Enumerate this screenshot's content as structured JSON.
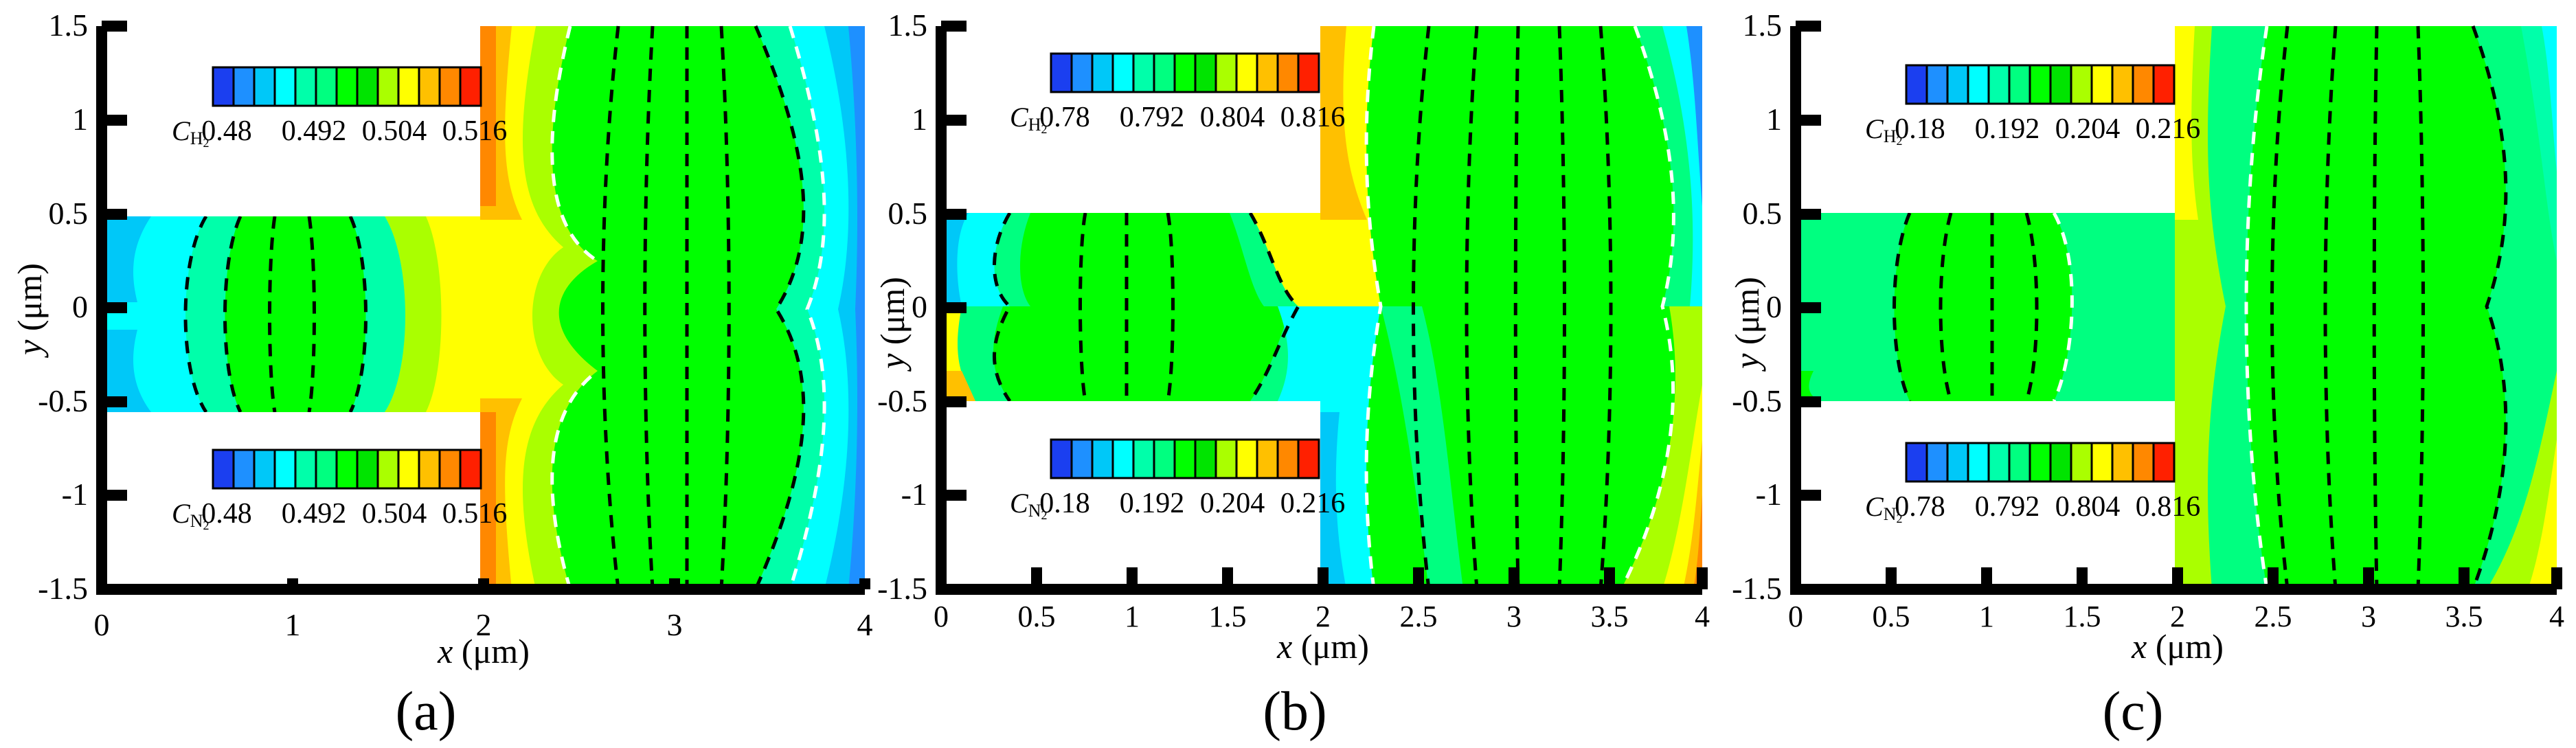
{
  "colors": {
    "palette": [
      "#1b3ff0",
      "#1e90ff",
      "#00c8f8",
      "#00ffff",
      "#00ffaa",
      "#00ff80",
      "#00ff00",
      "#00e400",
      "#aaff00",
      "#ffff00",
      "#ffc000",
      "#ff8800",
      "#ff2000"
    ],
    "axis": "#000000"
  },
  "chart_data": [
    {
      "type": "heatmap",
      "panel_label": "(a)",
      "xlabel_var": "x",
      "xlabel_unit": " (μm)",
      "ylabel_var": "y",
      "ylabel_unit": " (μm)",
      "xlim": [
        0,
        4
      ],
      "ylim": [
        -1.5,
        1.5
      ],
      "x_ticks": [
        "0",
        "1",
        "2",
        "3",
        "4"
      ],
      "y_ticks": [
        "1.5",
        "1",
        "0.5",
        "0",
        "-0.5",
        "-1",
        "-1.5"
      ],
      "geometry": "junction: left channel -0.5<y<0.5 for 0<x<2, full height for 2<x<4",
      "legend_top": {
        "symbol": "C",
        "subscript": "H",
        "subscript2": "2",
        "ticks": [
          "0.48",
          "0.492",
          "0.504",
          "0.516"
        ],
        "range": [
          0.48,
          0.52
        ]
      },
      "legend_bottom": {
        "symbol": "C",
        "subscript": "N",
        "subscript2": "2",
        "ticks": [
          "0.48",
          "0.492",
          "0.504",
          "0.516"
        ],
        "range": [
          0.48,
          0.52
        ]
      }
    },
    {
      "type": "heatmap",
      "panel_label": "(b)",
      "xlabel_var": "x",
      "xlabel_unit": " (μm)",
      "ylabel_var": "y",
      "ylabel_unit": " (μm)",
      "xlim": [
        0,
        4
      ],
      "ylim": [
        -1.5,
        1.5
      ],
      "x_ticks": [
        "0",
        "0.5",
        "1",
        "1.5",
        "2",
        "2.5",
        "3",
        "3.5",
        "4"
      ],
      "y_ticks": [
        "1.5",
        "1",
        "0.5",
        "0",
        "-0.5",
        "-1",
        "-1.5"
      ],
      "geometry": "junction: left channel -0.5<y<0.5 for 0<x<2, full height for 2<x<4",
      "legend_top": {
        "symbol": "C",
        "subscript": "H",
        "subscript2": "2",
        "ticks": [
          "0.78",
          "0.792",
          "0.804",
          "0.816"
        ],
        "range": [
          0.78,
          0.82
        ]
      },
      "legend_bottom": {
        "symbol": "C",
        "subscript": "N",
        "subscript2": "2",
        "ticks": [
          "0.18",
          "0.192",
          "0.204",
          "0.216"
        ],
        "range": [
          0.18,
          0.22
        ]
      }
    },
    {
      "type": "heatmap",
      "panel_label": "(c)",
      "xlabel_var": "x",
      "xlabel_unit": " (μm)",
      "ylabel_var": "y",
      "ylabel_unit": " (μm)",
      "xlim": [
        0,
        4
      ],
      "ylim": [
        -1.5,
        1.5
      ],
      "x_ticks": [
        "0",
        "0.5",
        "1",
        "1.5",
        "2",
        "2.5",
        "3",
        "3.5",
        "4"
      ],
      "y_ticks": [
        "1.5",
        "1",
        "0.5",
        "0",
        "-0.5",
        "-1",
        "-1.5"
      ],
      "geometry": "junction: left channel -0.5<y<0.5 for 0<x<2, full height for 2<x<4",
      "legend_top": {
        "symbol": "C",
        "subscript": "H",
        "subscript2": "2",
        "ticks": [
          "0.18",
          "0.192",
          "0.204",
          "0.216"
        ],
        "range": [
          0.18,
          0.22
        ]
      },
      "legend_bottom": {
        "symbol": "C",
        "subscript": "N",
        "subscript2": "2",
        "ticks": [
          "0.78",
          "0.792",
          "0.804",
          "0.816"
        ],
        "range": [
          0.78,
          0.82
        ]
      }
    }
  ]
}
